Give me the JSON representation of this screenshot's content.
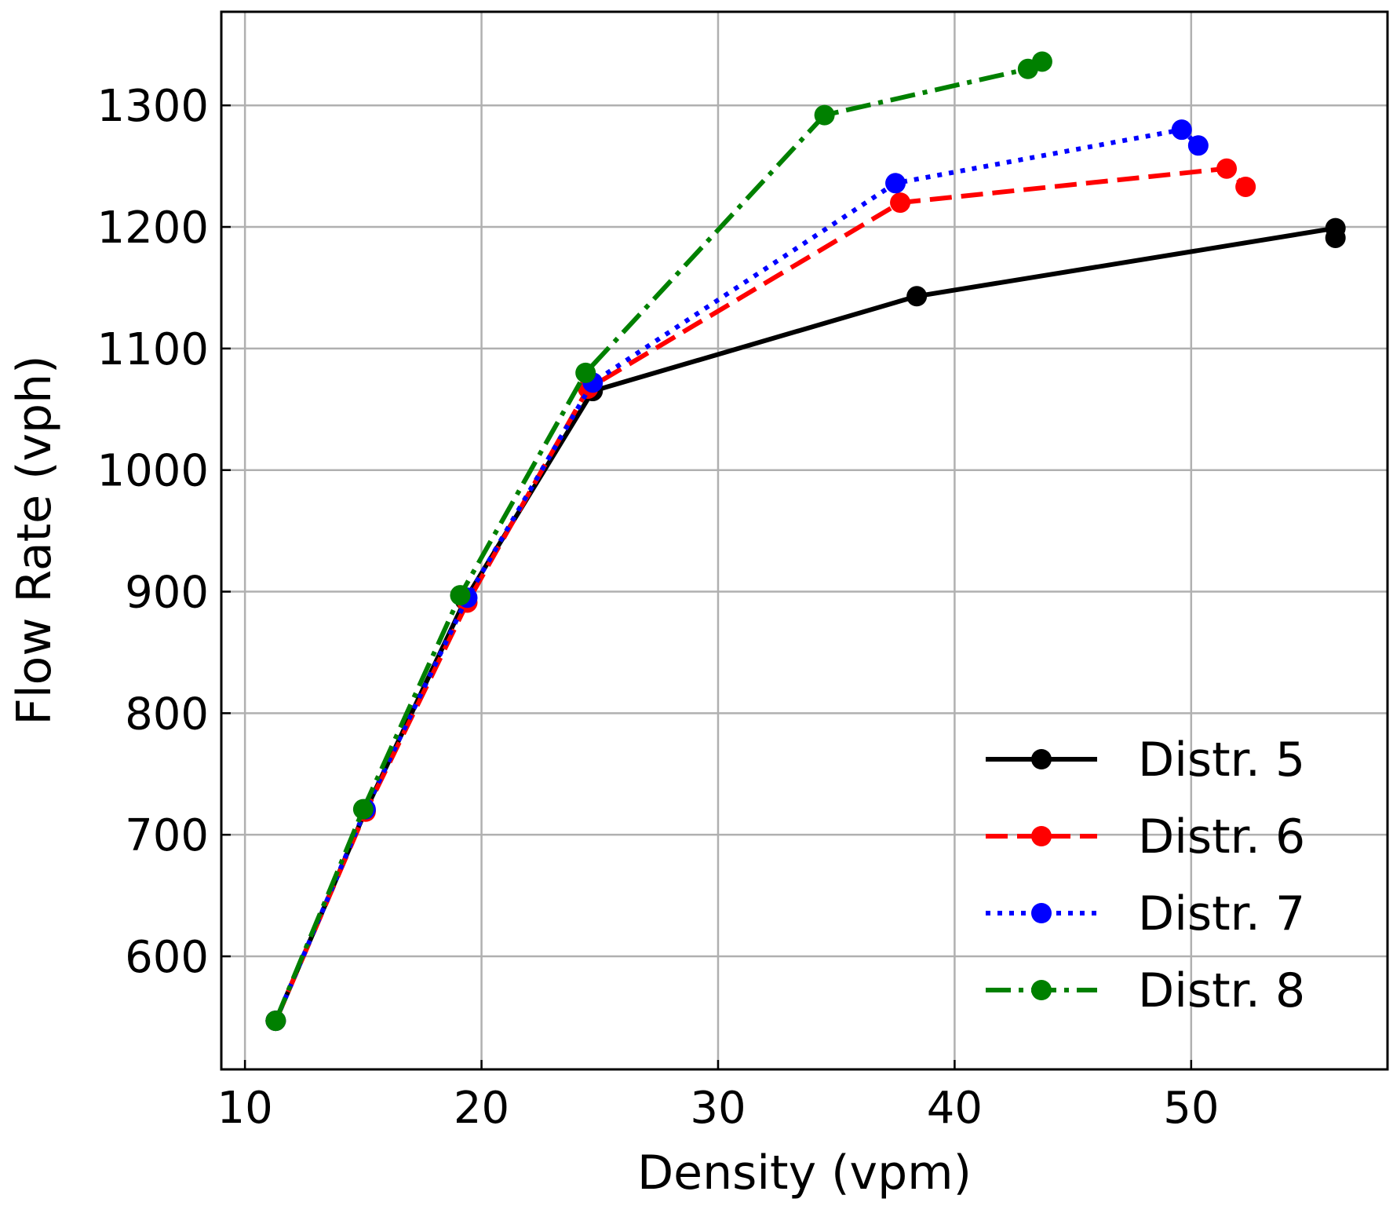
{
  "chart_data": {
    "type": "line",
    "title": "",
    "xlabel": "Density (vpm)",
    "ylabel": "Flow Rate (vph)",
    "xlim": [
      9,
      58.3
    ],
    "ylim": [
      507,
      1377
    ],
    "x_ticks": [
      10,
      20,
      30,
      40,
      50
    ],
    "y_ticks": [
      600,
      700,
      800,
      900,
      1000,
      1100,
      1200,
      1300
    ],
    "grid": true,
    "legend_position": "lower-right",
    "series": [
      {
        "name": "Distr. 5",
        "color": "#000000",
        "line_style": "solid",
        "x": [
          11.3,
          15.1,
          19.3,
          24.7,
          38.4,
          56.1,
          56.1
        ],
        "y": [
          547,
          720,
          893,
          1065,
          1143,
          1199,
          1191
        ]
      },
      {
        "name": "Distr. 6",
        "color": "#ff0000",
        "line_style": "dashed",
        "x": [
          11.3,
          15.1,
          19.4,
          24.5,
          37.7,
          51.5,
          52.3
        ],
        "y": [
          547,
          719,
          891,
          1067,
          1220,
          1248,
          1233
        ]
      },
      {
        "name": "Distr. 7",
        "color": "#0000ff",
        "line_style": "dotted",
        "x": [
          11.3,
          15.1,
          19.4,
          24.7,
          37.5,
          49.6,
          50.3
        ],
        "y": [
          547,
          721,
          895,
          1072,
          1236,
          1280,
          1267
        ]
      },
      {
        "name": "Distr. 8",
        "color": "#008000",
        "line_style": "dashdot",
        "x": [
          11.3,
          15.0,
          19.1,
          24.4,
          34.5,
          43.1,
          43.7
        ],
        "y": [
          547,
          721,
          897,
          1080,
          1292,
          1330,
          1336
        ]
      }
    ]
  }
}
